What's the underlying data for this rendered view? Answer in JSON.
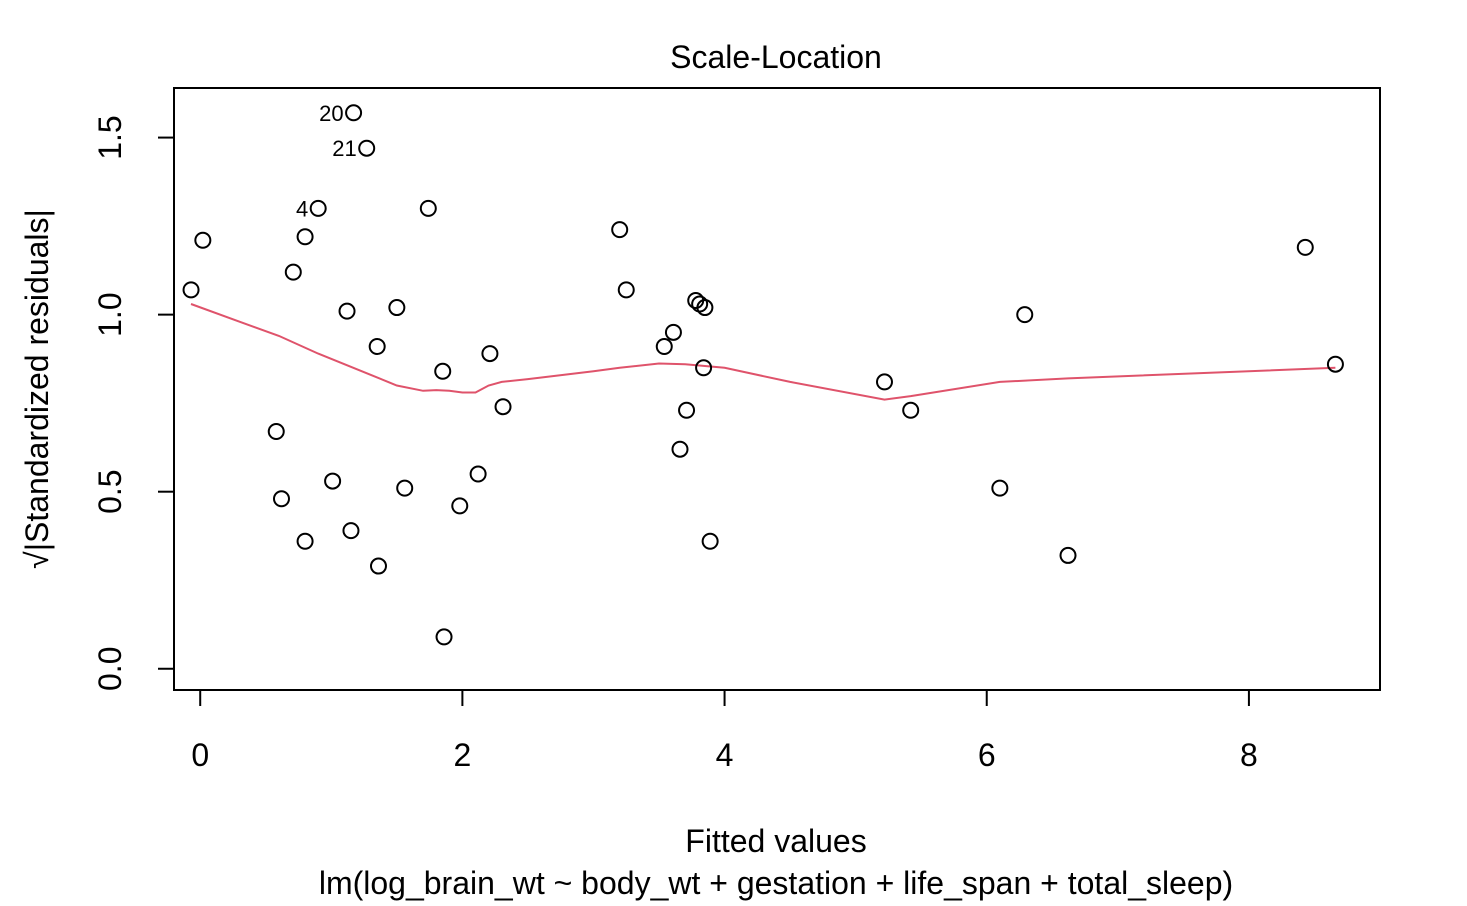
{
  "chart_data": {
    "type": "scatter",
    "title": "Scale-Location",
    "xlabel": "Fitted values",
    "subtitle": "lm(log_brain_wt ~ body_wt + gestation + life_span + total_sleep)",
    "ylabel": "√|Standardized residuals|",
    "xlim": [
      -0.2,
      9.0
    ],
    "ylim": [
      -0.06,
      1.64
    ],
    "x_ticks": [
      0,
      2,
      4,
      6,
      8
    ],
    "x_tick_labels": [
      "0",
      "2",
      "4",
      "6",
      "8"
    ],
    "y_ticks": [
      0.0,
      0.5,
      1.0,
      1.5
    ],
    "y_tick_labels": [
      "0.0",
      "0.5",
      "1.0",
      "1.5"
    ],
    "grid": false,
    "points": [
      {
        "x": -0.07,
        "y": 1.07
      },
      {
        "x": 0.02,
        "y": 1.21
      },
      {
        "x": 0.58,
        "y": 0.67
      },
      {
        "x": 0.62,
        "y": 0.48
      },
      {
        "x": 0.71,
        "y": 1.12
      },
      {
        "x": 0.8,
        "y": 1.22
      },
      {
        "x": 0.8,
        "y": 0.36
      },
      {
        "x": 0.9,
        "y": 1.3,
        "label": "4"
      },
      {
        "x": 1.01,
        "y": 0.53
      },
      {
        "x": 1.12,
        "y": 1.01
      },
      {
        "x": 1.15,
        "y": 0.39
      },
      {
        "x": 1.17,
        "y": 1.57,
        "label": "20"
      },
      {
        "x": 1.27,
        "y": 1.47,
        "label": "21"
      },
      {
        "x": 1.35,
        "y": 0.91
      },
      {
        "x": 1.36,
        "y": 0.29
      },
      {
        "x": 1.5,
        "y": 1.02
      },
      {
        "x": 1.56,
        "y": 0.51
      },
      {
        "x": 1.74,
        "y": 1.3
      },
      {
        "x": 1.85,
        "y": 0.84
      },
      {
        "x": 1.86,
        "y": 0.09
      },
      {
        "x": 1.98,
        "y": 0.46
      },
      {
        "x": 2.12,
        "y": 0.55
      },
      {
        "x": 2.21,
        "y": 0.89
      },
      {
        "x": 2.31,
        "y": 0.74
      },
      {
        "x": 3.2,
        "y": 1.24
      },
      {
        "x": 3.25,
        "y": 1.07
      },
      {
        "x": 3.54,
        "y": 0.91
      },
      {
        "x": 3.61,
        "y": 0.95
      },
      {
        "x": 3.66,
        "y": 0.62
      },
      {
        "x": 3.71,
        "y": 0.73
      },
      {
        "x": 3.78,
        "y": 1.04
      },
      {
        "x": 3.81,
        "y": 1.03
      },
      {
        "x": 3.84,
        "y": 0.85
      },
      {
        "x": 3.85,
        "y": 1.02
      },
      {
        "x": 3.89,
        "y": 0.36
      },
      {
        "x": 5.22,
        "y": 0.81
      },
      {
        "x": 5.42,
        "y": 0.73
      },
      {
        "x": 6.1,
        "y": 0.51
      },
      {
        "x": 6.29,
        "y": 1.0
      },
      {
        "x": 6.62,
        "y": 0.32
      },
      {
        "x": 8.43,
        "y": 1.19
      },
      {
        "x": 8.66,
        "y": 0.86
      }
    ],
    "smoother": {
      "color": "#DF536B",
      "x": [
        -0.07,
        0.3,
        0.6,
        0.9,
        1.1,
        1.3,
        1.5,
        1.7,
        1.8,
        1.9,
        2.0,
        2.1,
        2.2,
        2.3,
        2.5,
        3.0,
        3.2,
        3.5,
        3.7,
        4.0,
        4.5,
        5.22,
        5.42,
        6.1,
        6.62,
        8.66
      ],
      "y": [
        1.03,
        0.98,
        0.94,
        0.89,
        0.86,
        0.83,
        0.8,
        0.785,
        0.787,
        0.785,
        0.78,
        0.78,
        0.8,
        0.81,
        0.818,
        0.84,
        0.85,
        0.862,
        0.86,
        0.85,
        0.81,
        0.76,
        0.77,
        0.81,
        0.82,
        0.85
      ]
    }
  }
}
